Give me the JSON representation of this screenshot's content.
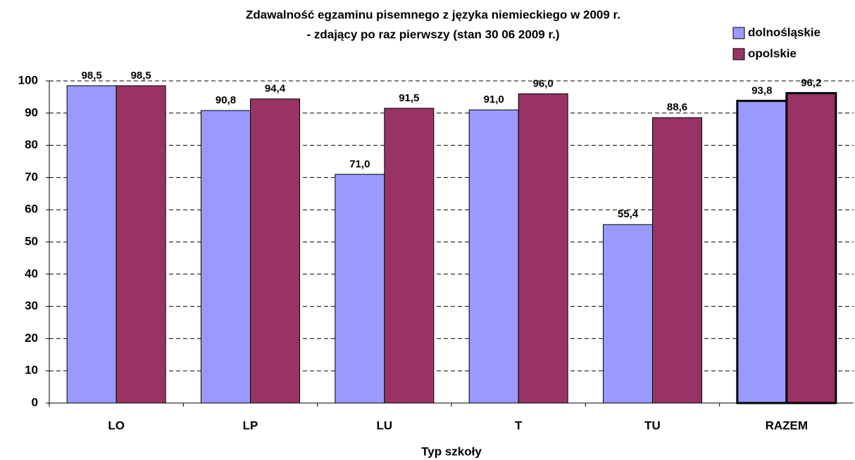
{
  "chart_data": {
    "type": "bar",
    "title": [
      "Zdawalność egzaminu pisemnego z języka niemieckiego w 2009 r.",
      "- zdający po raz pierwszy (stan 30 06 2009 r.)"
    ],
    "x_label": "Typ szkoły",
    "categories": [
      "LO",
      "LP",
      "LU",
      "T",
      "TU",
      "RAZEM"
    ],
    "series": [
      {
        "name": "dolnośląskie",
        "color": "#9999ff",
        "values": [
          98.5,
          90.8,
          71.0,
          91.0,
          55.4,
          93.8
        ],
        "value_labels": [
          "98,5",
          "90,8",
          "71,0",
          "91,0",
          "55,4",
          "93,8"
        ]
      },
      {
        "name": "opolskie",
        "color": "#993366",
        "values": [
          98.5,
          94.4,
          91.5,
          96.0,
          88.6,
          96.2
        ],
        "value_labels": [
          "98,5",
          "94,4",
          "91,5",
          "96,0",
          "88,6",
          "96,2"
        ]
      }
    ],
    "ylim": [
      0,
      100
    ],
    "yticks": [
      0,
      10,
      20,
      30,
      40,
      50,
      60,
      70,
      80,
      90,
      100
    ],
    "grid": true,
    "legend": "top-right"
  }
}
